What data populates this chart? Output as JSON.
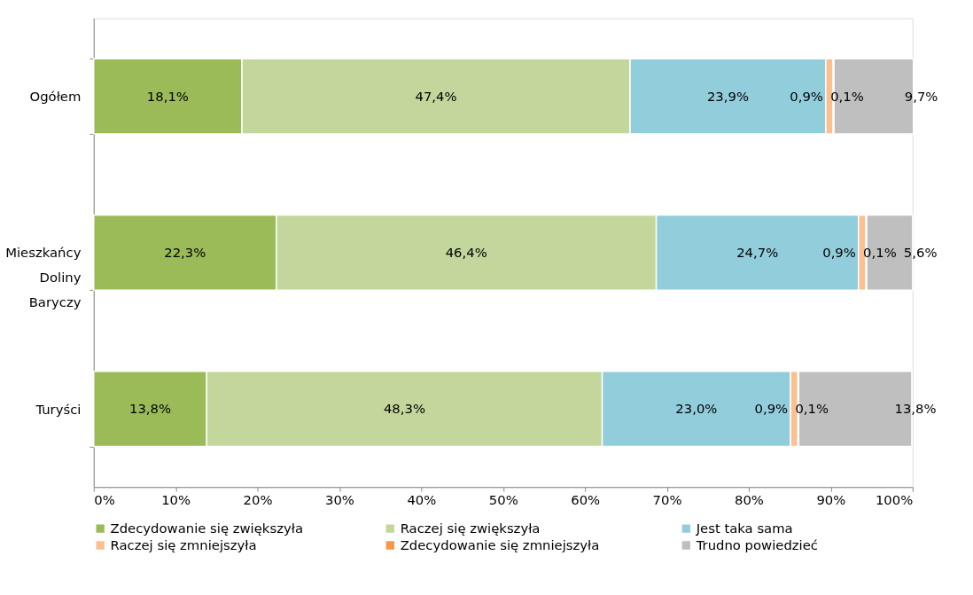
{
  "chart_data": {
    "type": "bar",
    "orientation": "horizontal",
    "stacked": true,
    "categories": [
      "Ogółem",
      "Mieszkańcy Doliny Baryczy",
      "Turyści"
    ],
    "series": [
      {
        "name": "Zdecydowanie się zwiększyła",
        "color": "#9bbb59",
        "values": [
          18.1,
          22.3,
          13.8
        ],
        "value_labels": [
          "18,1%",
          "22,3%",
          "13,8%"
        ]
      },
      {
        "name": "Raczej się zwiększyła",
        "color": "#c3d69b",
        "values": [
          47.4,
          46.4,
          48.3
        ],
        "value_labels": [
          "47,4%",
          "46,4%",
          "48,3%"
        ]
      },
      {
        "name": "Jest taka sama",
        "color": "#92cddc",
        "values": [
          23.9,
          24.7,
          23.0
        ],
        "value_labels": [
          "23,9%",
          "24,7%",
          "23,0%"
        ]
      },
      {
        "name": "Raczej się zmniejszyła",
        "color": "#fac090",
        "values": [
          0.9,
          0.9,
          0.9
        ],
        "value_labels": [
          "0,9%",
          "0,9%",
          "0,9%"
        ]
      },
      {
        "name": "Zdecydowanie się zmniejszyła",
        "color": "#f79646",
        "values": [
          0.1,
          0.1,
          0.1
        ],
        "value_labels": [
          "0,1%",
          "0,1%",
          "0,1%"
        ]
      },
      {
        "name": "Trudno powiedzieć",
        "color": "#bfbfbf",
        "values": [
          9.7,
          5.6,
          13.8
        ],
        "value_labels": [
          "9,7%",
          "5,6%",
          "13,8%"
        ]
      }
    ],
    "xlim": [
      0,
      100
    ],
    "xticks": [
      {
        "value": 0,
        "label": "0%"
      },
      {
        "value": 10,
        "label": "10%"
      },
      {
        "value": 20,
        "label": "20%"
      },
      {
        "value": 30,
        "label": "30%"
      },
      {
        "value": 40,
        "label": "40%"
      },
      {
        "value": 50,
        "label": "50%"
      },
      {
        "value": 60,
        "label": "60%"
      },
      {
        "value": 70,
        "label": "70%"
      },
      {
        "value": 80,
        "label": "80%"
      },
      {
        "value": 90,
        "label": "90%"
      },
      {
        "value": 100,
        "label": "100%"
      }
    ],
    "grid": false,
    "legend": "bottom"
  }
}
